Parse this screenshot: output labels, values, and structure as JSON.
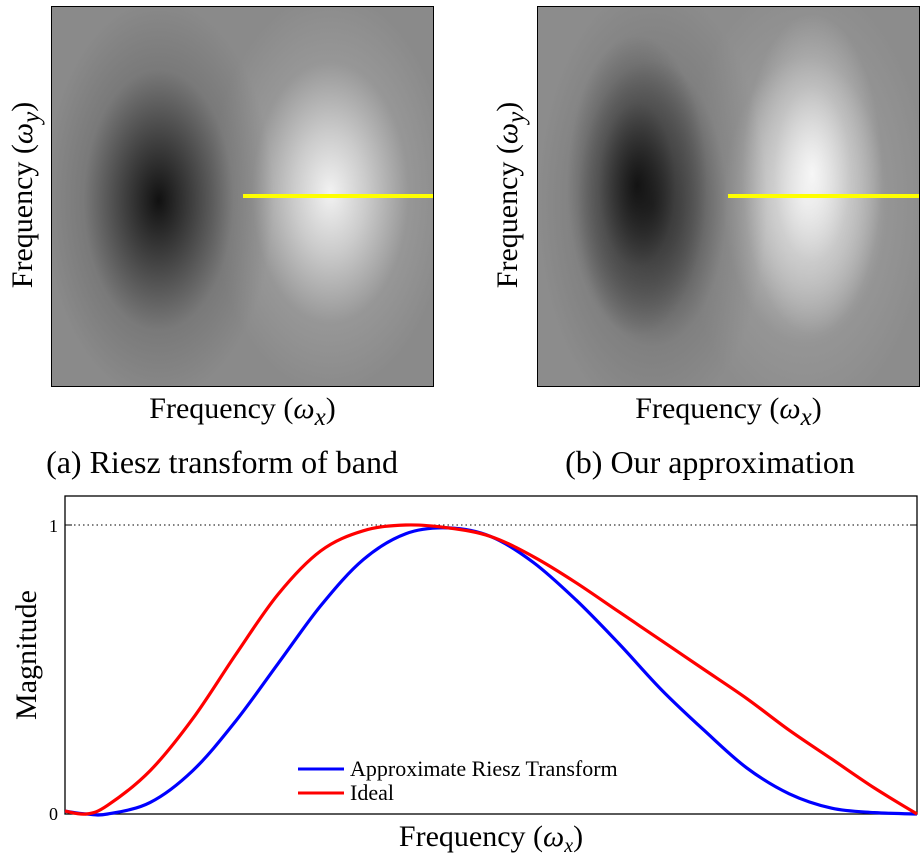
{
  "panel_a": {
    "ylabel_text": "Frequency",
    "ylabel_symbol": "ω",
    "ylabel_sub": "y",
    "xlabel_text": "Frequency",
    "xlabel_symbol": "ω",
    "xlabel_sub": "x",
    "caption": "(a) Riesz transform of band"
  },
  "panel_b": {
    "ylabel_text": "Frequency",
    "ylabel_symbol": "ω",
    "ylabel_sub": "y",
    "xlabel_text": "Frequency",
    "xlabel_symbol": "ω",
    "xlabel_sub": "x",
    "caption": "(b) Our approximation"
  },
  "colors": {
    "highlight_line": "#ffff00",
    "approx": "#0000ff",
    "ideal": "#ff0000"
  },
  "chart_data": {
    "type": "line",
    "xlabel_text": "Frequency",
    "xlabel_symbol": "ω",
    "xlabel_sub": "x",
    "ylabel": "Magnitude",
    "xlim": [
      0,
      1
    ],
    "ylim": [
      0,
      1
    ],
    "yticks": [
      "0",
      "1"
    ],
    "reference_line": {
      "y": 1,
      "style": "dotted"
    },
    "legend_placement": "bottom-center",
    "series": [
      {
        "name": "Approximate Riesz Transform",
        "color": "#0000ff",
        "x": [
          0,
          0.025,
          0.05,
          0.1,
          0.15,
          0.2,
          0.25,
          0.3,
          0.35,
          0.4,
          0.45,
          0.5,
          0.55,
          0.6,
          0.65,
          0.7,
          0.75,
          0.8,
          0.85,
          0.9,
          0.95,
          1.0
        ],
        "y": [
          0.01,
          0.0,
          0.0,
          0.04,
          0.15,
          0.32,
          0.52,
          0.72,
          0.88,
          0.97,
          0.99,
          0.96,
          0.87,
          0.74,
          0.59,
          0.43,
          0.29,
          0.16,
          0.07,
          0.02,
          0.005,
          0.0
        ]
      },
      {
        "name": "Ideal",
        "color": "#ff0000",
        "x": [
          0,
          0.025,
          0.05,
          0.1,
          0.15,
          0.2,
          0.25,
          0.3,
          0.35,
          0.4,
          0.45,
          0.5,
          0.55,
          0.6,
          0.65,
          0.7,
          0.75,
          0.8,
          0.85,
          0.9,
          0.95,
          1.0
        ],
        "y": [
          0.01,
          0.0,
          0.03,
          0.15,
          0.33,
          0.55,
          0.76,
          0.91,
          0.98,
          1.0,
          0.99,
          0.96,
          0.89,
          0.8,
          0.7,
          0.6,
          0.5,
          0.4,
          0.29,
          0.19,
          0.09,
          0.0
        ]
      }
    ]
  }
}
